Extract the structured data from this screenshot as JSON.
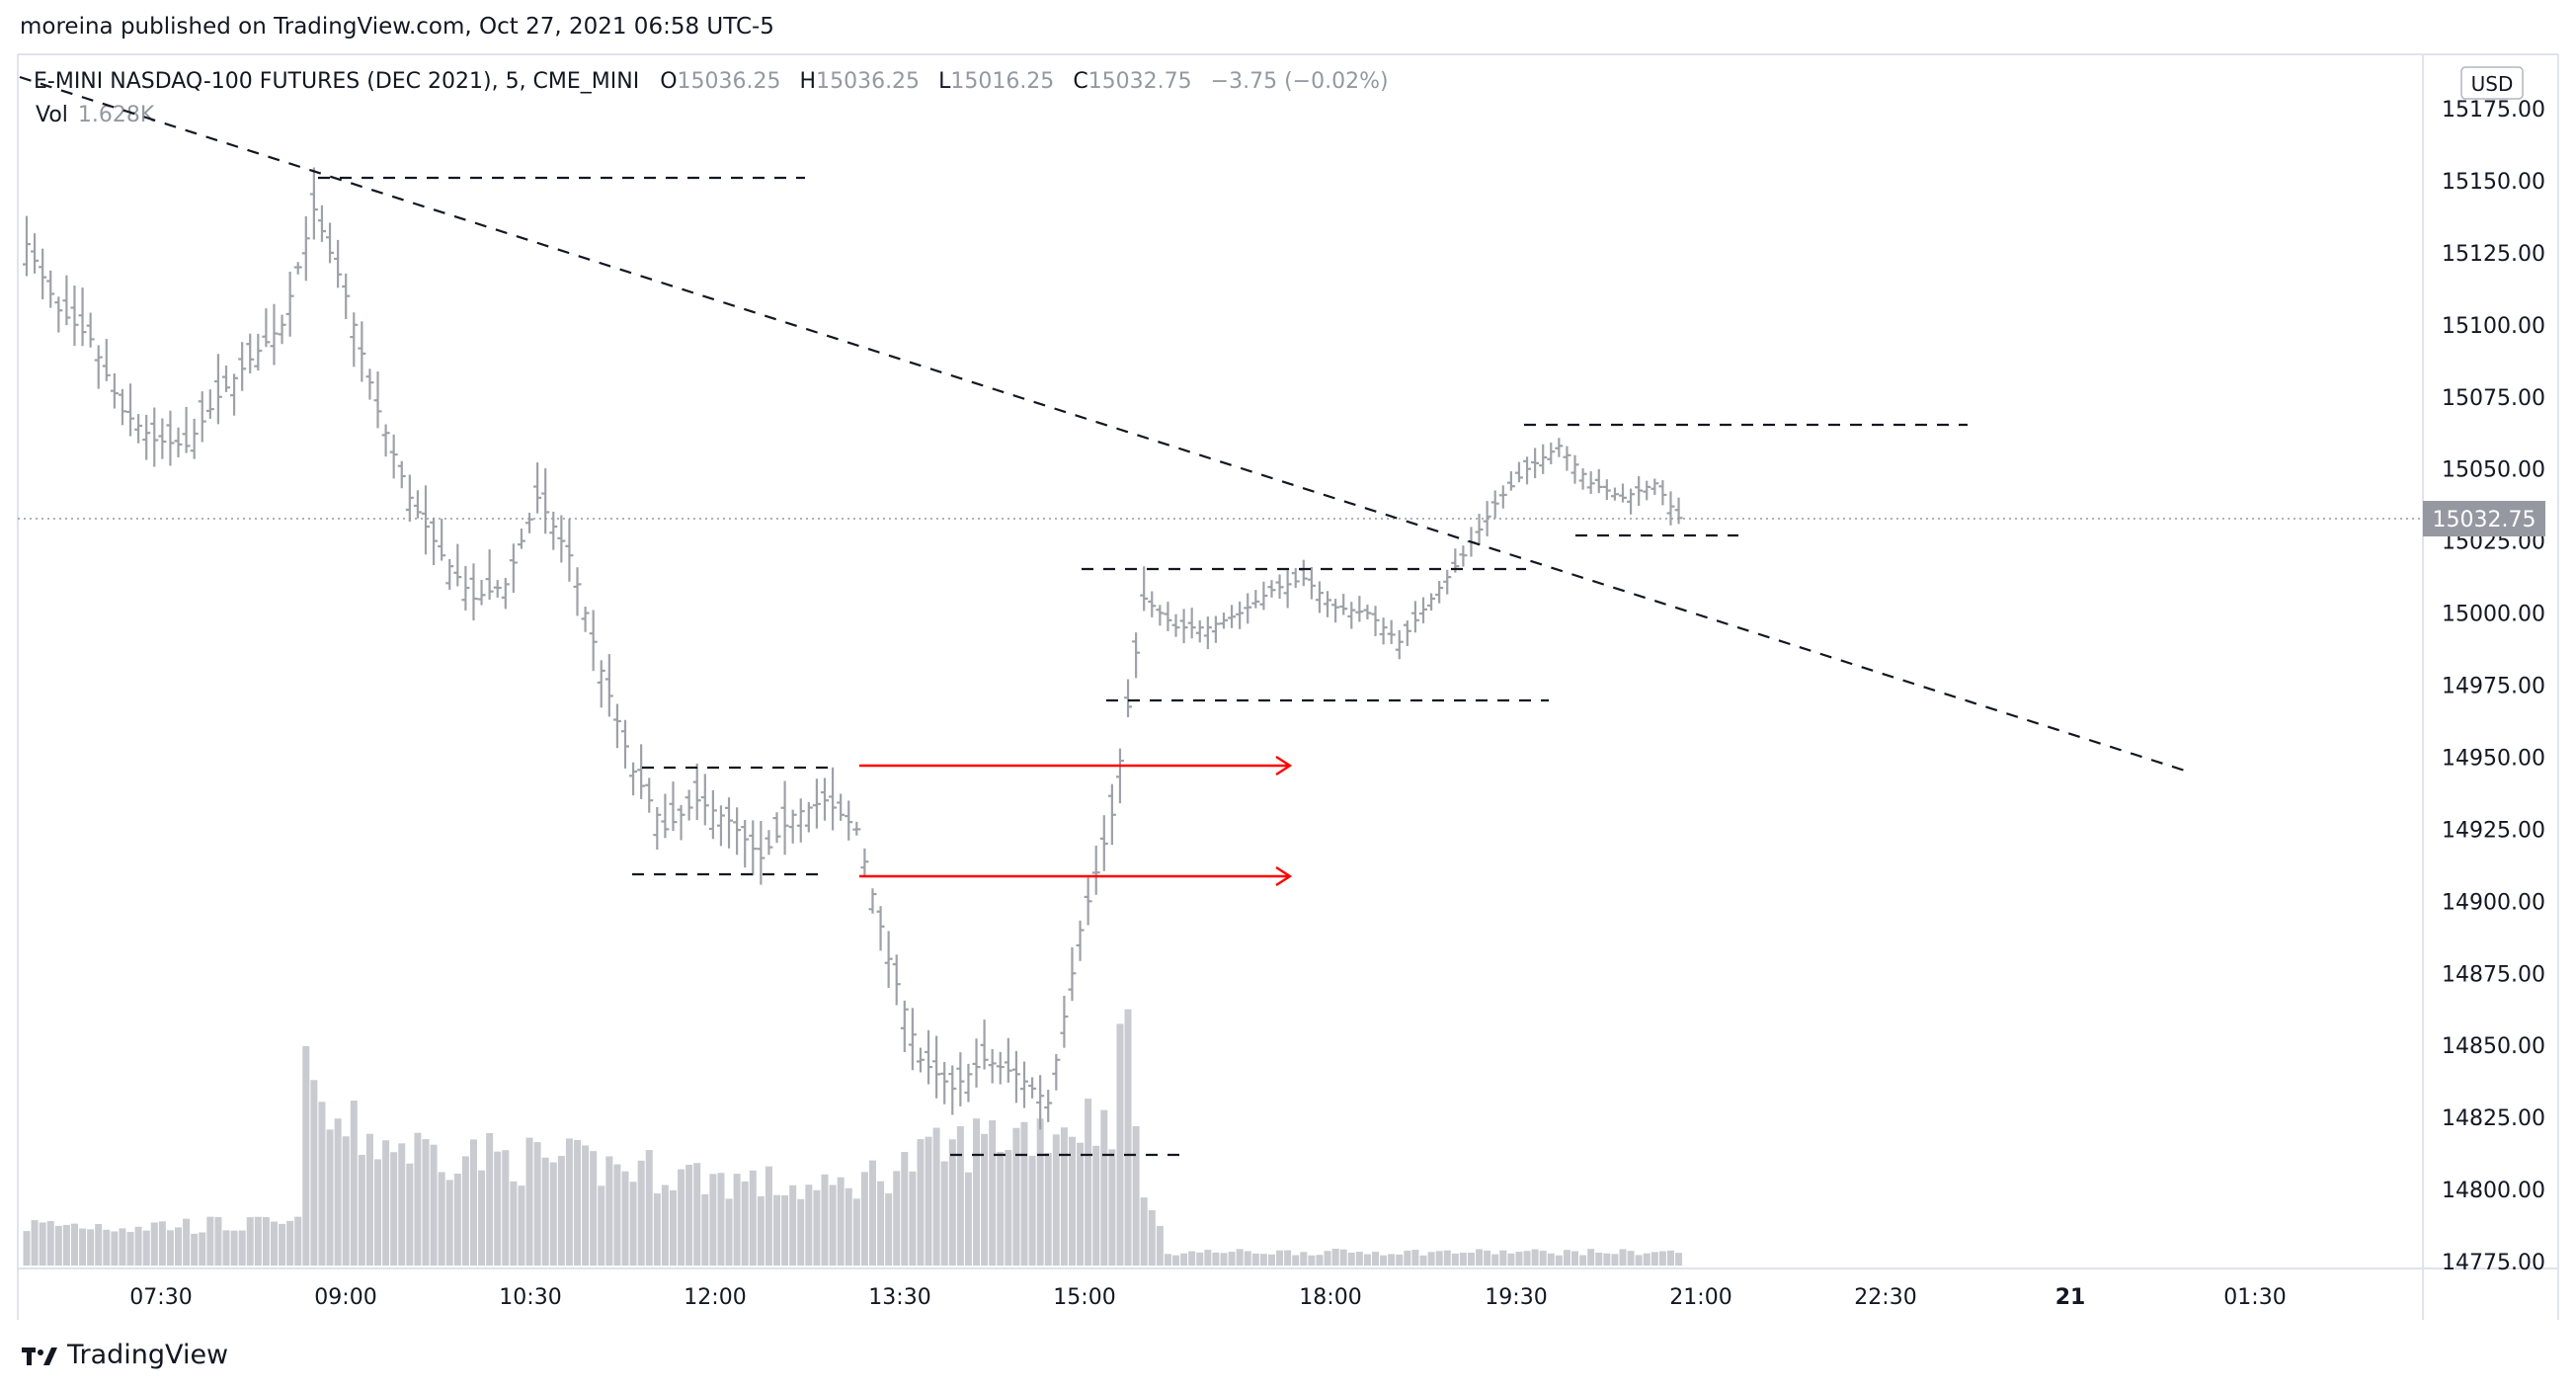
{
  "header": {
    "published": "moreina published on TradingView.com, Oct 27, 2021 06:58 UTC-5"
  },
  "legend": {
    "symbol": "E-MINI NASDAQ-100 FUTURES (DEC 2021), 5, CME_MINI",
    "o_label": "O",
    "o_value": "15036.25",
    "h_label": "H",
    "h_value": "15036.25",
    "l_label": "L",
    "l_value": "15016.25",
    "c_label": "C",
    "c_value": "15032.75",
    "change": "−3.75 (−0.02%)",
    "vol_label": "Vol",
    "vol_value": "1.628K"
  },
  "currency": "USD",
  "brand": "TradingView",
  "colors": {
    "bar": "#9fa1a8",
    "volume": "#c9cbd0",
    "arrow": "#ff0000",
    "last_price_bg": "#9598a1"
  },
  "chart_data": {
    "type": "bar",
    "y_ticks": [
      "15175.00",
      "15150.00",
      "15125.00",
      "15100.00",
      "15075.00",
      "15050.00",
      "15025.00",
      "15000.00",
      "14975.00",
      "14950.00",
      "14925.00",
      "14900.00",
      "14875.00",
      "14850.00",
      "14825.00",
      "14800.00",
      "14775.00"
    ],
    "ylim": [
      14775,
      15175
    ],
    "x_ticks": [
      "07:30",
      "09:00",
      "10:30",
      "12:00",
      "13:30",
      "15:00",
      "18:00",
      "19:30",
      "21:00",
      "22:30",
      "21",
      "01:30"
    ],
    "last_price": "15032.75",
    "close_path": [
      {
        "t": 0,
        "y": 15128
      },
      {
        "t": 4,
        "y": 15105
      },
      {
        "t": 8,
        "y": 15095
      },
      {
        "t": 12,
        "y": 15070
      },
      {
        "t": 16,
        "y": 15060
      },
      {
        "t": 20,
        "y": 15058
      },
      {
        "t": 24,
        "y": 15075
      },
      {
        "t": 28,
        "y": 15088
      },
      {
        "t": 32,
        "y": 15100
      },
      {
        "t": 36,
        "y": 15140
      },
      {
        "t": 40,
        "y": 15110
      },
      {
        "t": 44,
        "y": 15070
      },
      {
        "t": 48,
        "y": 15040
      },
      {
        "t": 52,
        "y": 15020
      },
      {
        "t": 56,
        "y": 15005
      },
      {
        "t": 60,
        "y": 15010
      },
      {
        "t": 64,
        "y": 15040
      },
      {
        "t": 68,
        "y": 15020
      },
      {
        "t": 72,
        "y": 14980
      },
      {
        "t": 76,
        "y": 14945
      },
      {
        "t": 80,
        "y": 14925
      },
      {
        "t": 84,
        "y": 14935
      },
      {
        "t": 88,
        "y": 14928
      },
      {
        "t": 92,
        "y": 14915
      },
      {
        "t": 96,
        "y": 14930
      },
      {
        "t": 100,
        "y": 14935
      },
      {
        "t": 104,
        "y": 14925
      },
      {
        "t": 108,
        "y": 14880
      },
      {
        "t": 112,
        "y": 14845
      },
      {
        "t": 116,
        "y": 14835
      },
      {
        "t": 120,
        "y": 14845
      },
      {
        "t": 124,
        "y": 14840
      },
      {
        "t": 128,
        "y": 14830
      },
      {
        "t": 132,
        "y": 14890
      },
      {
        "t": 136,
        "y": 14930
      },
      {
        "t": 140,
        "y": 15005
      },
      {
        "t": 144,
        "y": 14995
      },
      {
        "t": 148,
        "y": 14995
      },
      {
        "t": 152,
        "y": 15000
      },
      {
        "t": 156,
        "y": 15008
      },
      {
        "t": 160,
        "y": 15012
      },
      {
        "t": 164,
        "y": 15002
      },
      {
        "t": 168,
        "y": 15000
      },
      {
        "t": 172,
        "y": 14990
      },
      {
        "t": 176,
        "y": 15005
      },
      {
        "t": 180,
        "y": 15020
      },
      {
        "t": 184,
        "y": 15038
      },
      {
        "t": 188,
        "y": 15050
      },
      {
        "t": 192,
        "y": 15058
      },
      {
        "t": 196,
        "y": 15045
      },
      {
        "t": 200,
        "y": 15040
      },
      {
        "t": 204,
        "y": 15045
      },
      {
        "t": 207,
        "y": 15033
      }
    ],
    "volume_profile": [
      {
        "t": 0,
        "v": 0.12
      },
      {
        "t": 34,
        "v": 0.12
      },
      {
        "t": 35,
        "v": 0.85
      },
      {
        "t": 36,
        "v": 0.45
      },
      {
        "t": 40,
        "v": 0.4
      },
      {
        "t": 48,
        "v": 0.35
      },
      {
        "t": 60,
        "v": 0.32
      },
      {
        "t": 80,
        "v": 0.28
      },
      {
        "t": 100,
        "v": 0.22
      },
      {
        "t": 110,
        "v": 0.3
      },
      {
        "t": 120,
        "v": 0.38
      },
      {
        "t": 130,
        "v": 0.42
      },
      {
        "t": 136,
        "v": 0.45
      },
      {
        "t": 138,
        "v": 0.75
      },
      {
        "t": 139,
        "v": 0.38
      },
      {
        "t": 141,
        "v": 0.15
      },
      {
        "t": 143,
        "v": 0.04
      },
      {
        "t": 207,
        "v": 0.04
      }
    ]
  }
}
